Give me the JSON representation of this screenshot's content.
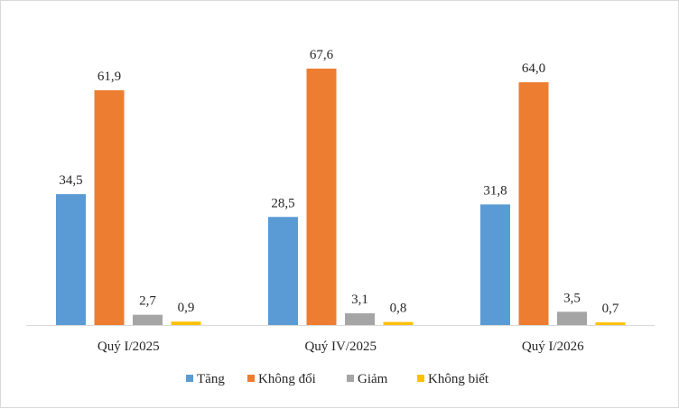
{
  "chart_data": {
    "type": "bar",
    "categories": [
      "Quý I/2025",
      "Quý IV/2025",
      "Quý I/2026"
    ],
    "series": [
      {
        "name": "Tăng",
        "color": "#5B9BD5",
        "values": [
          34.5,
          28.5,
          31.8
        ],
        "labels": [
          "34,5",
          "28,5",
          "31,8"
        ]
      },
      {
        "name": "Không đổi",
        "color": "#ED7D31",
        "values": [
          61.9,
          67.6,
          64.0
        ],
        "labels": [
          "61,9",
          "67,6",
          "64,0"
        ]
      },
      {
        "name": "Giảm",
        "color": "#A5A5A5",
        "values": [
          2.7,
          3.1,
          3.5
        ],
        "labels": [
          "2,7",
          "3,1",
          "3,5"
        ]
      },
      {
        "name": "Không biết",
        "color": "#FFC000",
        "values": [
          0.9,
          0.8,
          0.7
        ],
        "labels": [
          "0,9",
          "0,8",
          "0,7"
        ]
      }
    ],
    "ylim": [
      0,
      68
    ],
    "grid": false,
    "legend_position": "bottom"
  }
}
